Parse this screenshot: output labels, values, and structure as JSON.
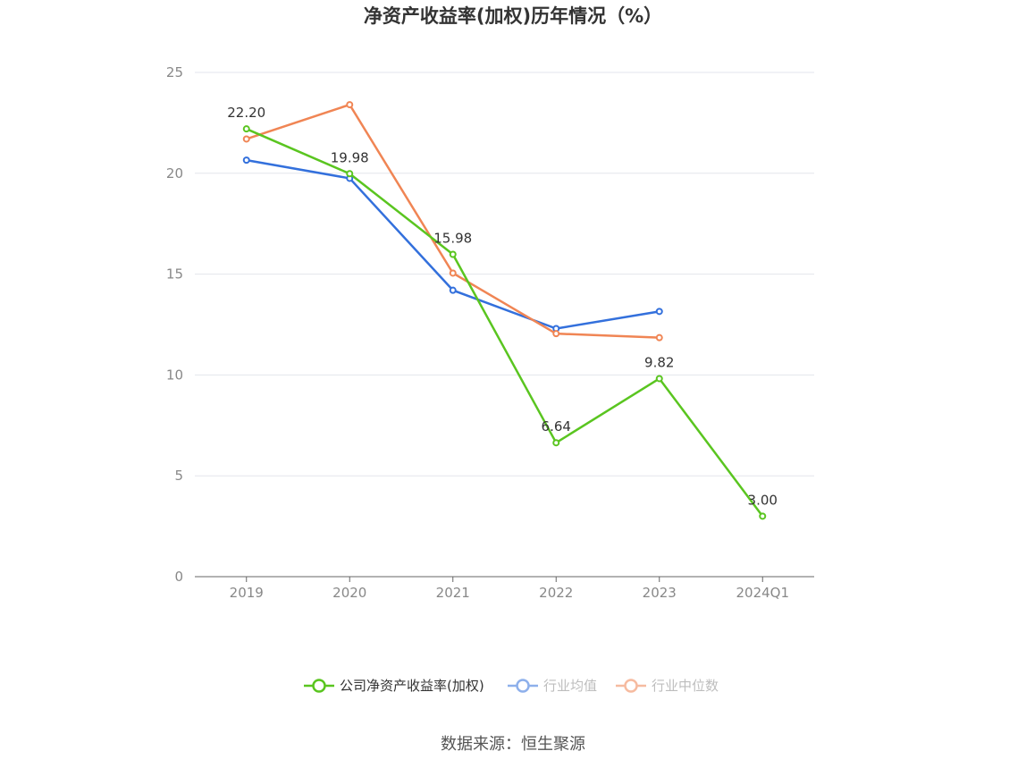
{
  "chart_data": {
    "type": "line",
    "title": "净资产收益率(加权)历年情况（%）",
    "categories": [
      "2019",
      "2020",
      "2021",
      "2022",
      "2023",
      "2024Q1"
    ],
    "ylim": [
      0,
      25
    ],
    "yticks": [
      0,
      5,
      10,
      15,
      20,
      25
    ],
    "grid": true,
    "legend_position": "bottom",
    "series": [
      {
        "name": "公司净资产收益率(加权)",
        "color": "#5ac520",
        "values": [
          22.2,
          19.98,
          15.98,
          6.64,
          9.82,
          3.0
        ],
        "labels": [
          "22.20",
          "19.98",
          "15.98",
          "6.64",
          "9.82",
          "3.00"
        ]
      },
      {
        "name": "行业均值",
        "color": "#3370dc",
        "values": [
          20.65,
          19.75,
          14.2,
          12.3,
          13.15,
          null
        ]
      },
      {
        "name": "行业中位数",
        "color": "#f08554",
        "values": [
          21.7,
          23.4,
          15.05,
          12.05,
          11.85,
          null
        ]
      }
    ]
  },
  "source": "数据来源：恒生聚源"
}
